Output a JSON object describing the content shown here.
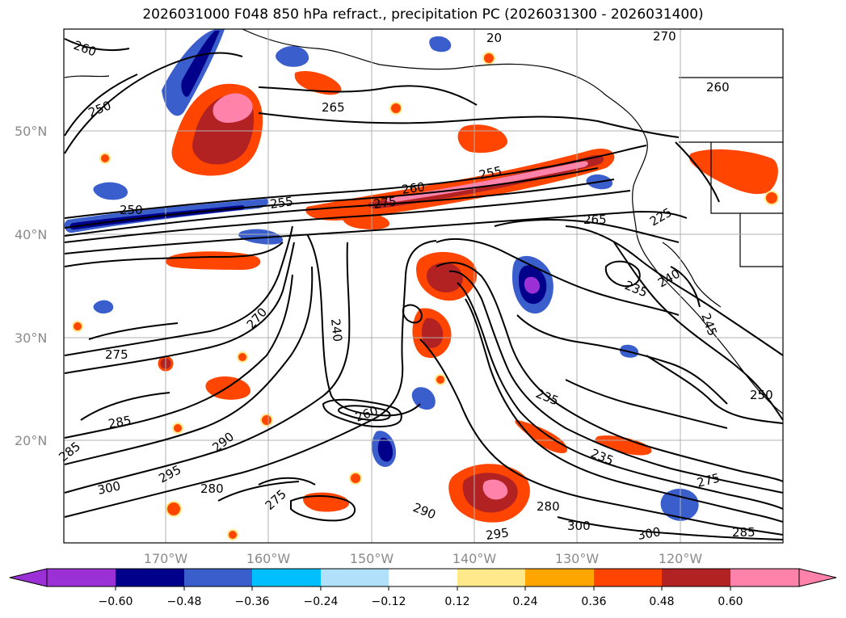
{
  "title": "2026031000 F048 850 hPa refract., precipitation PC (2026031300 - 2026031400)",
  "map": {
    "lat_labels": [
      "50°N",
      "40°N",
      "30°N",
      "20°N"
    ],
    "lon_labels": [
      "170°W",
      "160°W",
      "150°W",
      "140°W",
      "130°W",
      "120°W"
    ],
    "contour_labels": [
      {
        "text": "260"
      },
      {
        "text": "250"
      },
      {
        "text": "265"
      },
      {
        "text": "270"
      },
      {
        "text": "260"
      },
      {
        "text": "250"
      },
      {
        "text": "255"
      },
      {
        "text": "260"
      },
      {
        "text": "275"
      },
      {
        "text": "255"
      },
      {
        "text": "265"
      },
      {
        "text": "225"
      },
      {
        "text": "235"
      },
      {
        "text": "240"
      },
      {
        "text": "270"
      },
      {
        "text": "275"
      },
      {
        "text": "240"
      },
      {
        "text": "260"
      },
      {
        "text": "285"
      },
      {
        "text": "290"
      },
      {
        "text": "285"
      },
      {
        "text": "295"
      },
      {
        "text": "300"
      },
      {
        "text": "280"
      },
      {
        "text": "275"
      },
      {
        "text": "290"
      },
      {
        "text": "235"
      },
      {
        "text": "235"
      },
      {
        "text": "280"
      },
      {
        "text": "300"
      },
      {
        "text": "300"
      },
      {
        "text": "295"
      },
      {
        "text": "245"
      },
      {
        "text": "250"
      },
      {
        "text": "20"
      },
      {
        "text": "275"
      },
      {
        "text": "285"
      }
    ]
  },
  "colorbar": {
    "ticks": [
      "−0.60",
      "−0.48",
      "−0.36",
      "−0.24",
      "−0.12",
      "0.12",
      "0.24",
      "0.36",
      "0.48",
      "0.60"
    ],
    "colors": [
      "#9b30d6",
      "#00008b",
      "#3a5fcd",
      "#00bfff",
      "#b0e0fa",
      "#ffffff",
      "#ffe98a",
      "#ffa500",
      "#ff4500",
      "#b22222",
      "#ff82ab"
    ]
  },
  "colors": {
    "orange": "#ff4500",
    "dark_red": "#b22222",
    "pink": "#ff82ab",
    "yellow": "#ffe98a",
    "light_orange": "#ffa500",
    "dark_blue": "#00008b",
    "blue": "#3a5fcd",
    "purple": "#9b30d6",
    "sky": "#00bfff",
    "light_blue": "#b0e0fa",
    "grid": "#b0b0b0"
  }
}
